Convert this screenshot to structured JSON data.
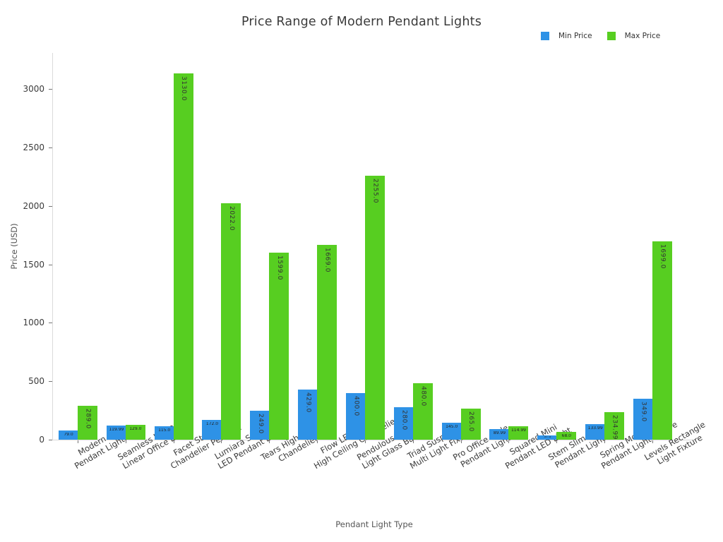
{
  "chart_data": {
    "type": "bar",
    "title": "Price Range of Modern Pendant Lights",
    "xlabel": "Pendant Light Type",
    "ylabel": "Price (USD)",
    "ylim": [
      0,
      3300
    ],
    "yticks": [
      0,
      500,
      1000,
      1500,
      2000,
      2500,
      3000
    ],
    "grid": false,
    "legend_position": "top-right",
    "categories": [
      [
        "Modern LED",
        "Pendant Lighting"
      ],
      [
        "Seamless L-Shape",
        "Linear Office Light"
      ],
      [
        "Facet Staircase",
        "Chandelier Pendant"
      ],
      [
        "Lumiara Stairwell",
        "LED Pendant Light"
      ],
      [
        "Tears High Ceiling",
        "Chandelier"
      ],
      [
        "Flow LED Curved",
        "High Ceiling Chandelier"
      ],
      [
        "Pendulous 7-46",
        "Light Glass Ball"
      ],
      [
        "Triad Suspended",
        "Multi Light Fixture"
      ],
      [
        "Pro Office Style",
        "Pendant Light"
      ],
      [
        "Squared Mini",
        "Pendant LED Light"
      ],
      [
        "Stem Slim LED",
        "Pendant Light"
      ],
      [
        "Spring Modern LED",
        "Pendant Light Fixture"
      ],
      [
        "Levels Rectangle",
        "Light Fixture"
      ]
    ],
    "series": [
      {
        "name": "Min Price",
        "color": "#2e92e6",
        "values": [
          79.0,
          119.99,
          115.0,
          172.0,
          249.0,
          429.0,
          400.0,
          280.0,
          145.0,
          89.99,
          37.0,
          133.99,
          349.0
        ],
        "labels": [
          "79.0",
          "119.99",
          "115.0",
          "172.0",
          "249.0",
          "429.0",
          "400.0",
          "280.0",
          "145.0",
          "89.99",
          "37.0",
          "133.99",
          "349.0"
        ]
      },
      {
        "name": "Max Price",
        "color": "#57ce21",
        "values": [
          289.0,
          129.0,
          3130.0,
          2022.0,
          1599.0,
          1669.0,
          2255.0,
          480.0,
          265.0,
          114.99,
          68.0,
          234.99,
          1699.0
        ],
        "labels": [
          "289.0",
          "129.0",
          "3130.0",
          "2022.0",
          "1599.0",
          "1669.0",
          "2255.0",
          "480.0",
          "265.0",
          "114.99",
          "68.0",
          "234.99",
          "1699.0"
        ]
      }
    ]
  }
}
